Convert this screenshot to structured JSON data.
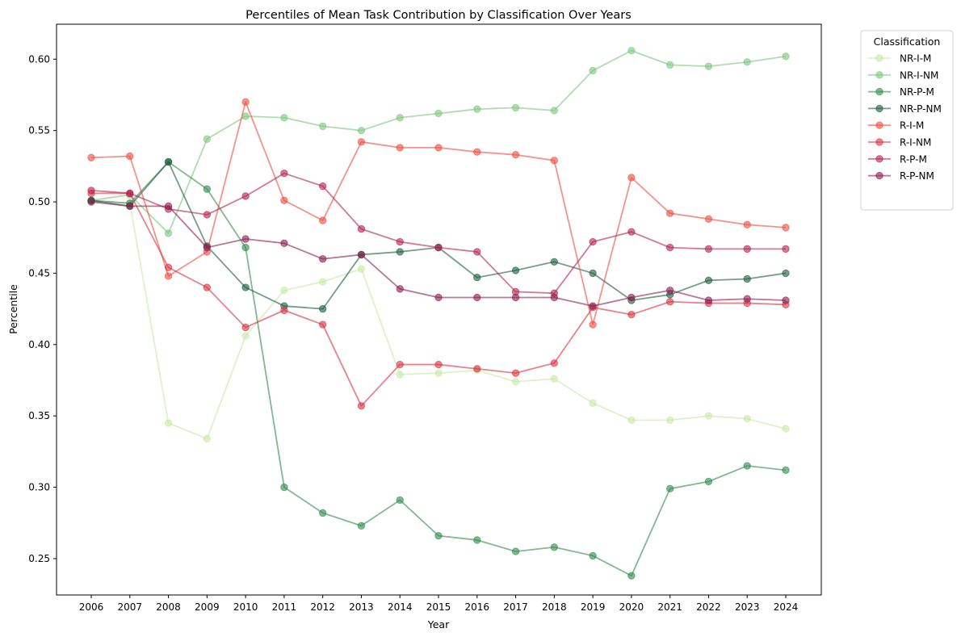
{
  "chart_data": {
    "type": "line",
    "title": "Percentiles of Mean Task Contribution by Classification Over Years",
    "xlabel": "Year",
    "ylabel": "Percentile",
    "x": [
      2006,
      2007,
      2008,
      2009,
      2010,
      2011,
      2012,
      2013,
      2014,
      2015,
      2016,
      2017,
      2018,
      2019,
      2020,
      2021,
      2022,
      2023,
      2024
    ],
    "ylim": [
      0.2245,
      0.6245
    ],
    "yticks": [
      0.25,
      0.3,
      0.35,
      0.4,
      0.45,
      0.5,
      0.55,
      0.6
    ],
    "grid": false,
    "legend": {
      "title": "Classification",
      "placement": "outside-top-right"
    },
    "series": [
      {
        "name": "NR-I-M",
        "color": "#c7e9a5",
        "values": [
          0.501,
          0.499,
          0.345,
          0.334,
          0.406,
          0.438,
          0.444,
          0.453,
          0.379,
          0.38,
          0.382,
          0.374,
          0.376,
          0.359,
          0.347,
          0.347,
          0.35,
          0.348,
          0.341
        ]
      },
      {
        "name": "NR-I-NM",
        "color": "#7cc67c",
        "values": [
          0.501,
          0.505,
          0.478,
          0.544,
          0.56,
          0.559,
          0.553,
          0.55,
          0.559,
          0.562,
          0.565,
          0.566,
          0.564,
          0.592,
          0.606,
          0.596,
          0.595,
          0.598,
          0.602
        ]
      },
      {
        "name": "NR-P-M",
        "color": "#2e8b4a",
        "values": [
          0.501,
          0.499,
          0.528,
          0.509,
          0.468,
          0.3,
          0.282,
          0.273,
          0.291,
          0.266,
          0.263,
          0.255,
          0.258,
          0.252,
          0.238,
          0.299,
          0.304,
          0.315,
          0.312
        ]
      },
      {
        "name": "NR-P-NM",
        "color": "#1a5c3c",
        "values": [
          0.501,
          0.497,
          0.528,
          0.469,
          0.44,
          0.427,
          0.425,
          0.463,
          0.465,
          0.468,
          0.447,
          0.452,
          0.458,
          0.45,
          0.431,
          0.435,
          0.445,
          0.446,
          0.45
        ]
      },
      {
        "name": "R-I-M",
        "color": "#ee4b3e",
        "values": [
          0.531,
          0.532,
          0.448,
          0.465,
          0.57,
          0.501,
          0.487,
          0.542,
          0.538,
          0.538,
          0.535,
          0.533,
          0.529,
          0.414,
          0.517,
          0.492,
          0.488,
          0.484,
          0.482
        ]
      },
      {
        "name": "R-I-NM",
        "color": "#d83040",
        "values": [
          0.506,
          0.506,
          0.454,
          0.44,
          0.412,
          0.424,
          0.414,
          0.357,
          0.386,
          0.386,
          0.383,
          0.38,
          0.387,
          0.426,
          0.421,
          0.43,
          0.429,
          0.429,
          0.428
        ]
      },
      {
        "name": "R-P-M",
        "color": "#b51f4d",
        "values": [
          0.508,
          0.506,
          0.495,
          0.491,
          0.504,
          0.52,
          0.511,
          0.481,
          0.472,
          0.468,
          0.465,
          0.437,
          0.436,
          0.472,
          0.479,
          0.468,
          0.467,
          0.467,
          0.467
        ]
      },
      {
        "name": "R-P-NM",
        "color": "#8b1a4e",
        "values": [
          0.5,
          0.497,
          0.497,
          0.468,
          0.474,
          0.471,
          0.46,
          0.463,
          0.439,
          0.433,
          0.433,
          0.433,
          0.433,
          0.427,
          0.433,
          0.438,
          0.431,
          0.432,
          0.431
        ]
      }
    ]
  }
}
